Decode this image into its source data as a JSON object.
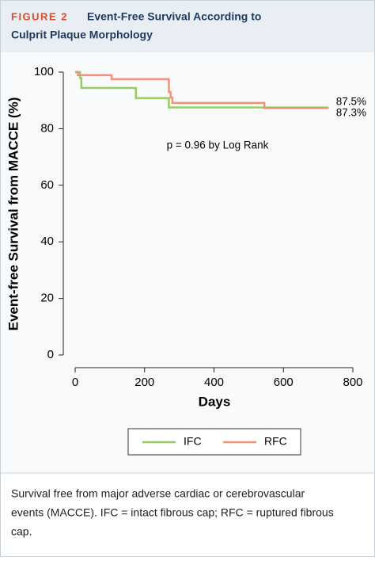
{
  "header": {
    "label": "FIGURE 2",
    "title_lines": [
      "Event-Free Survival According to",
      "Culprit Plaque Morphology"
    ]
  },
  "chart_data": {
    "type": "step",
    "xlabel": "Days",
    "ylabel": "Event-free Survival from MACCE (%)",
    "xlim": [
      0,
      800
    ],
    "xticks": [
      0,
      200,
      400,
      600,
      800
    ],
    "ylim": [
      0,
      100
    ],
    "yticks": [
      0,
      20,
      40,
      60,
      80,
      100
    ],
    "annotations": [
      "p = 0.96 by Log Rank",
      "87.5%",
      "87.3%"
    ],
    "series": [
      {
        "name": "IFC",
        "color": "#99cc66",
        "x": [
          0,
          14,
          18,
          175,
          270,
          730
        ],
        "values": [
          100,
          97.9,
          94.4,
          90.8,
          87.5,
          87.5
        ]
      },
      {
        "name": "RFC",
        "color": "#f4917b",
        "x": [
          0,
          8,
          105,
          270,
          275,
          280,
          545,
          730
        ],
        "values": [
          100,
          98.9,
          97.5,
          93,
          91,
          89.1,
          87.3,
          87.3
        ]
      }
    ]
  },
  "caption": {
    "lines": [
      "Survival free from major adverse cardiac or cerebrovascular",
      "events (MACCE). IFC = intact fibrous cap; RFC = ruptured fibrous",
      "cap."
    ]
  }
}
